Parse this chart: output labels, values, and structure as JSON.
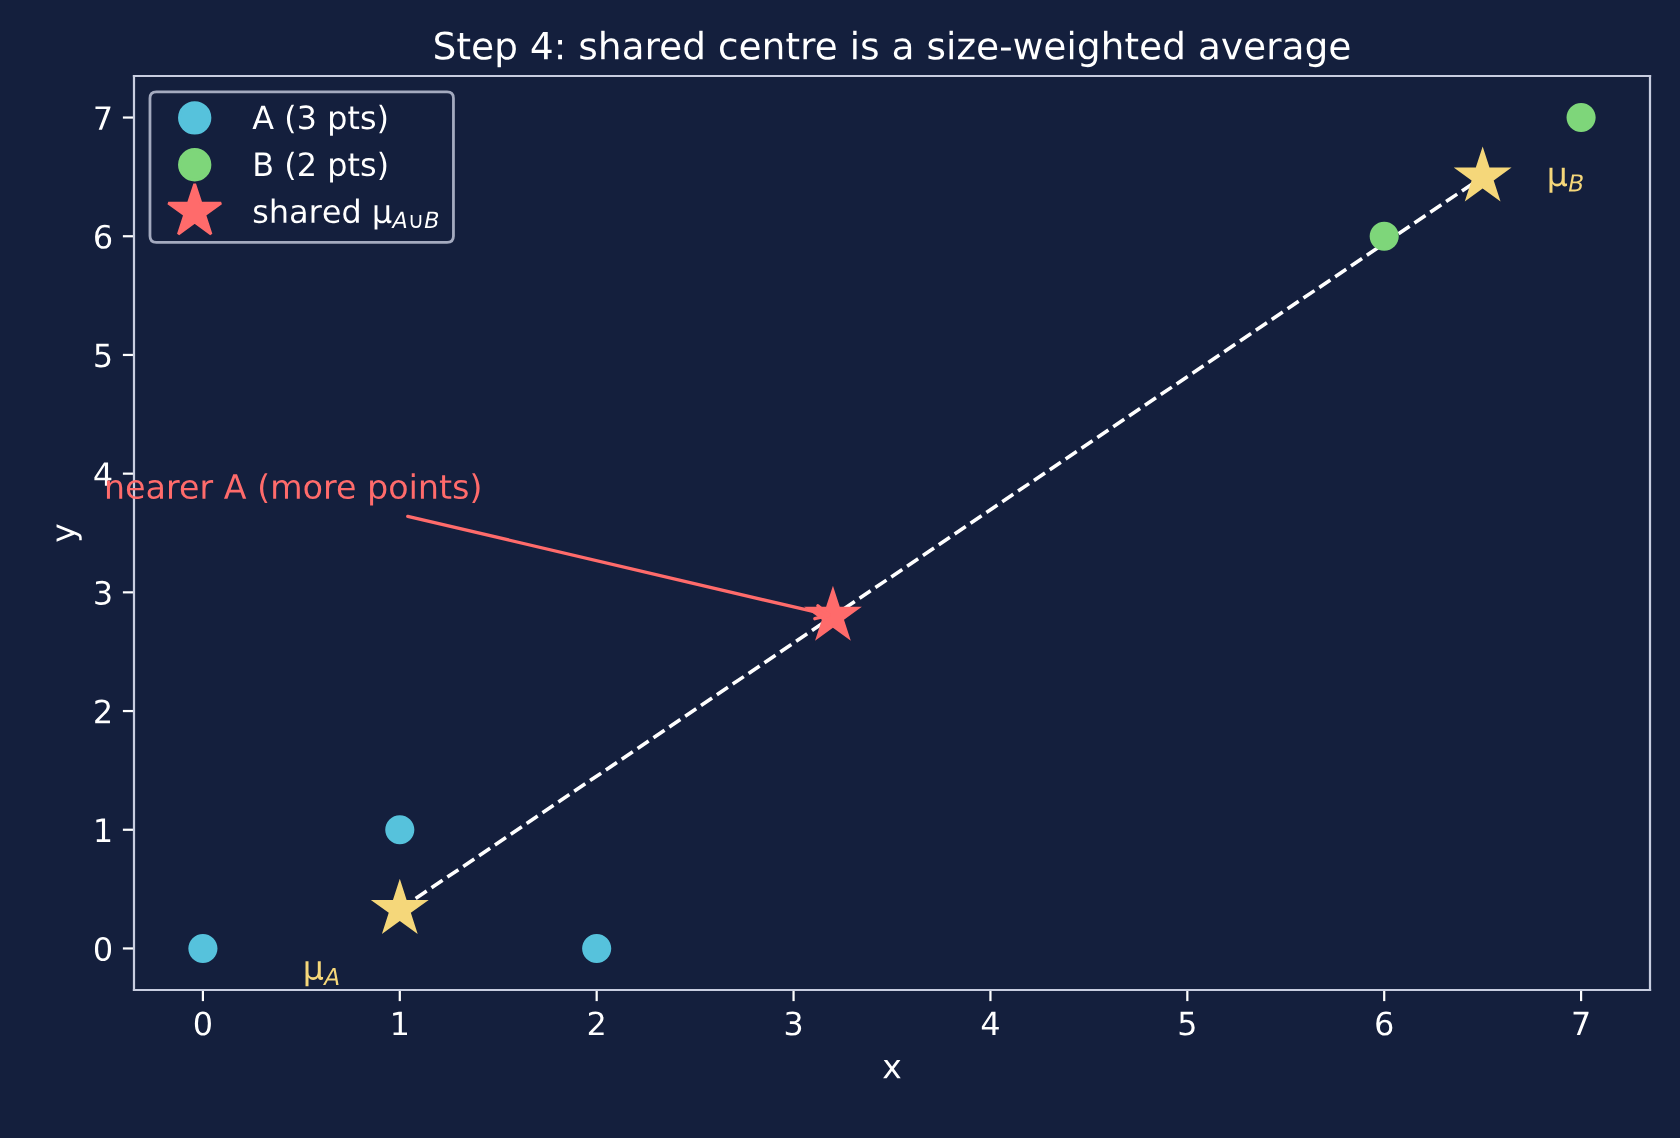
{
  "chart_data": {
    "type": "scatter",
    "title": "Step 4: shared centre is a size-weighted average",
    "xlabel": "x",
    "ylabel": "y",
    "xlim": [
      -0.35,
      7.35
    ],
    "ylim": [
      -0.35,
      7.35
    ],
    "xticks": [
      0,
      1,
      2,
      3,
      4,
      5,
      6,
      7
    ],
    "yticks": [
      0,
      1,
      2,
      3,
      4,
      5,
      6,
      7
    ],
    "grid": false,
    "legend": "top left",
    "series": [
      {
        "name": "A (3 pts)",
        "color": "#56c2dc",
        "marker": "circle",
        "x": [
          0,
          1,
          2
        ],
        "values": [
          0,
          1,
          0
        ]
      },
      {
        "name": "B (2 pts)",
        "color": "#7ed67a",
        "marker": "circle",
        "x": [
          6,
          7
        ],
        "values": [
          6,
          7
        ]
      },
      {
        "type": "line",
        "color": "#ffffff",
        "line_style": "dashed",
        "marker": "none",
        "x": [
          1,
          6.5
        ],
        "values": [
          0.33,
          6.5
        ]
      },
      {
        "color": "#f5d77a",
        "marker": "star",
        "x": [
          1,
          6.5
        ],
        "values": [
          0.33,
          6.5
        ]
      },
      {
        "name": "shared μ$_{A∪B}$",
        "color": "#ff6b6b",
        "marker": "star",
        "x": [
          3.2
        ],
        "values": [
          2.8
        ]
      }
    ],
    "annotations": [
      {
        "text": "nearer A (more points)",
        "x": 3.2,
        "y": 2.8
      },
      {
        "text": "μ$_{A}$",
        "x": 1,
        "y": 0.33
      },
      {
        "text": "μ$_{B}$",
        "x": 6.5,
        "y": 6.5
      }
    ]
  }
}
